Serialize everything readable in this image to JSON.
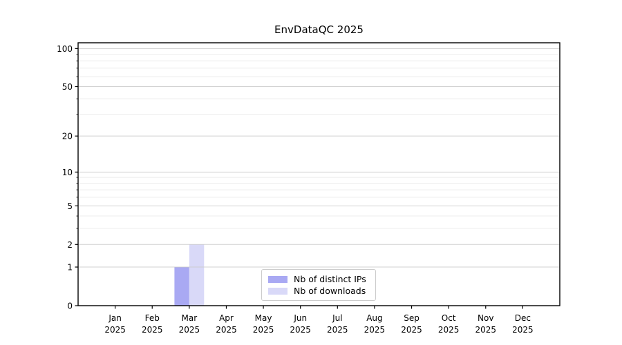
{
  "page": {
    "background": "#ffffff"
  },
  "chart_data": {
    "type": "bar",
    "title": "EnvDataQC 2025",
    "categories": [
      {
        "month": "Jan",
        "year": "2025"
      },
      {
        "month": "Feb",
        "year": "2025"
      },
      {
        "month": "Mar",
        "year": "2025"
      },
      {
        "month": "Apr",
        "year": "2025"
      },
      {
        "month": "May",
        "year": "2025"
      },
      {
        "month": "Jun",
        "year": "2025"
      },
      {
        "month": "Jul",
        "year": "2025"
      },
      {
        "month": "Aug",
        "year": "2025"
      },
      {
        "month": "Sep",
        "year": "2025"
      },
      {
        "month": "Oct",
        "year": "2025"
      },
      {
        "month": "Nov",
        "year": "2025"
      },
      {
        "month": "Dec",
        "year": "2025"
      }
    ],
    "series": [
      {
        "name": "Nb of distinct IPs",
        "color": "#a9a9f3",
        "values": [
          0,
          0,
          1,
          0,
          0,
          0,
          0,
          0,
          0,
          0,
          0,
          0
        ]
      },
      {
        "name": "Nb of downloads",
        "color": "#d9d9f8",
        "values": [
          0,
          0,
          2,
          0,
          0,
          0,
          0,
          0,
          0,
          0,
          0,
          0
        ]
      }
    ],
    "xlabel": "",
    "ylabel": "",
    "y_axis": {
      "scale": "log1p",
      "major_ticks": [
        0,
        1,
        2,
        5,
        10,
        20,
        50,
        100
      ],
      "minor_ticks": [
        3,
        4,
        6,
        7,
        8,
        9,
        30,
        40,
        60,
        70,
        80,
        90
      ],
      "ylim": [
        0,
        111
      ]
    },
    "grid": {
      "axis": "y",
      "major_color": "#c6c6c6",
      "minor_color": "#ececec"
    },
    "legend": {
      "position": "lower center"
    },
    "frame_color": "#000000"
  }
}
